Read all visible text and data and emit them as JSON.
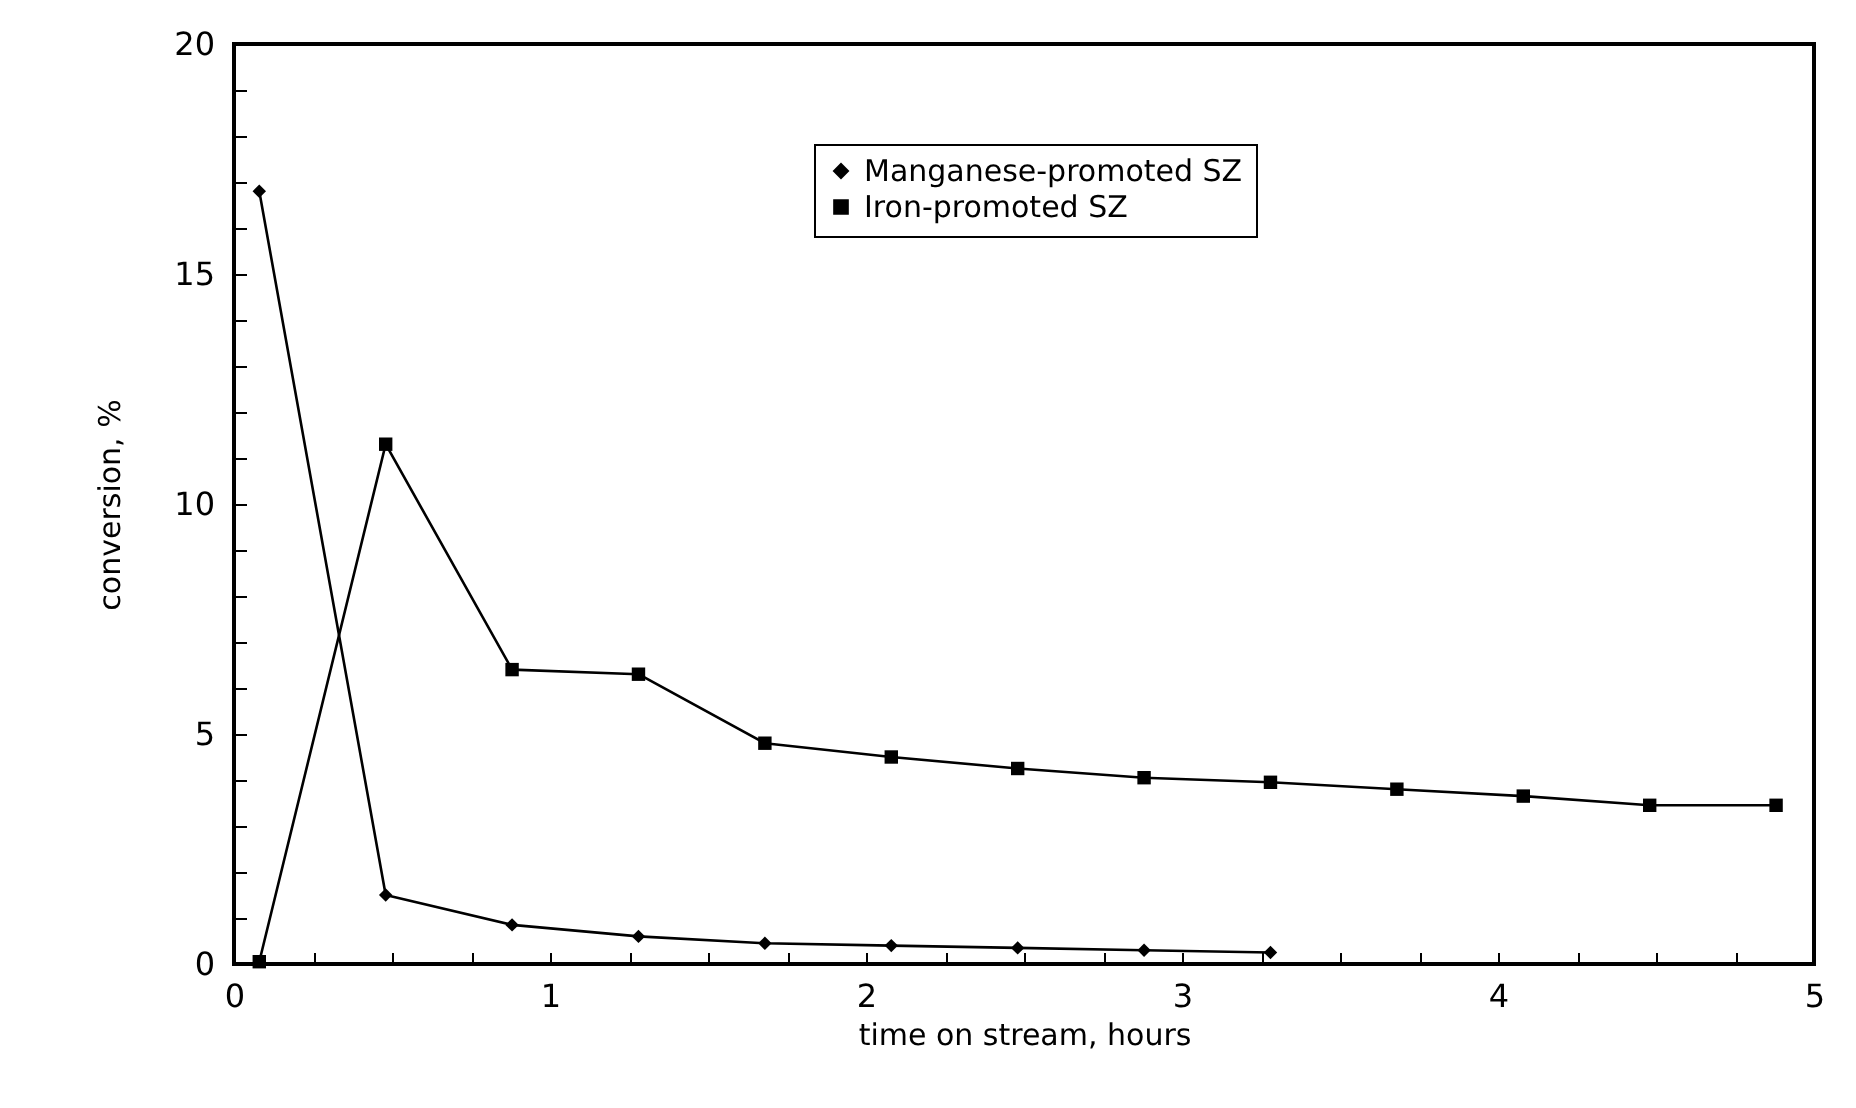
{
  "chart_data": {
    "type": "line",
    "xlabel": "time on stream, hours",
    "ylabel": "conversion, %",
    "xlim": [
      0,
      5
    ],
    "ylim": [
      0,
      20
    ],
    "xticks": [
      0,
      {
        "value": 0.25,
        "label": null
      },
      {
        "value": 0.5,
        "label": null
      },
      {
        "value": 0.75,
        "label": null
      },
      1,
      {
        "value": 1.25,
        "label": null
      },
      {
        "value": 1.5,
        "label": null
      },
      {
        "value": 1.75,
        "label": null
      },
      2,
      {
        "value": 2.25,
        "label": null
      },
      {
        "value": 2.5,
        "label": null
      },
      {
        "value": 2.75,
        "label": null
      },
      3,
      {
        "value": 3.25,
        "label": null
      },
      {
        "value": 3.5,
        "label": null
      },
      {
        "value": 3.75,
        "label": null
      },
      4,
      {
        "value": 4.25,
        "label": null
      },
      {
        "value": 4.5,
        "label": null
      },
      {
        "value": 4.75,
        "label": null
      },
      5
    ],
    "yticks": [
      0,
      {
        "value": 1,
        "label": null
      },
      {
        "value": 2,
        "label": null
      },
      {
        "value": 3,
        "label": null
      },
      {
        "value": 4,
        "label": null
      },
      5,
      {
        "value": 6,
        "label": null
      },
      {
        "value": 7,
        "label": null
      },
      {
        "value": 8,
        "label": null
      },
      {
        "value": 9,
        "label": null
      },
      10,
      {
        "value": 11,
        "label": null
      },
      {
        "value": 12,
        "label": null
      },
      {
        "value": 13,
        "label": null
      },
      {
        "value": 14,
        "label": null
      },
      15,
      {
        "value": 16,
        "label": null
      },
      {
        "value": 17,
        "label": null
      },
      {
        "value": 18,
        "label": null
      },
      {
        "value": 19,
        "label": null
      },
      20
    ],
    "grid": false,
    "legend": "top right",
    "line_style": "solid",
    "series": [
      {
        "name": "Manganese-promoted SZ",
        "color": "#000000",
        "marker": "diamond",
        "x": [
          0.08,
          0.48,
          0.88,
          1.28,
          1.68,
          2.08,
          2.48,
          2.88,
          3.28
        ],
        "values": [
          16.8,
          1.5,
          0.85,
          0.6,
          0.45,
          0.4,
          0.35,
          0.3,
          0.25
        ]
      },
      {
        "name": "Iron-promoted SZ",
        "color": "#000000",
        "marker": "square",
        "x": [
          0.08,
          0.48,
          0.88,
          1.28,
          1.68,
          2.08,
          2.48,
          2.88,
          3.28,
          3.68,
          4.08,
          4.48,
          4.88
        ],
        "values": [
          0.05,
          11.3,
          6.4,
          6.3,
          4.8,
          4.5,
          4.25,
          4.05,
          3.95,
          3.8,
          3.65,
          3.45,
          3.45
        ]
      }
    ]
  }
}
